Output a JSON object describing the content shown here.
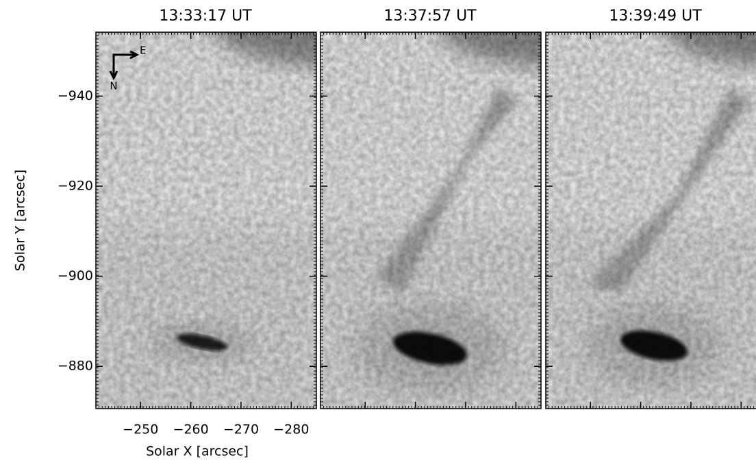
{
  "chart_data": {
    "type": "image-panels",
    "panels": [
      {
        "title": "13:33:17 UT"
      },
      {
        "title": "13:37:57 UT"
      },
      {
        "title": "13:39:49 UT"
      }
    ],
    "x_label": "Solar X [arcsec]",
    "y_label": "Solar Y [arcsec]",
    "xlim": [
      -241.1,
      -285.0
    ],
    "xticks": [
      {
        "value": -250,
        "label": "−250"
      },
      {
        "value": -260,
        "label": "−260"
      },
      {
        "value": -270,
        "label": "−270"
      },
      {
        "value": -280,
        "label": "−280"
      }
    ],
    "ylim": [
      -870.6,
      -954.2
    ],
    "yticks": [
      {
        "value": -940,
        "label": "−940"
      },
      {
        "value": -920,
        "label": "−920"
      },
      {
        "value": -900,
        "label": "−900"
      },
      {
        "value": -880,
        "label": "−880"
      }
    ],
    "compass": {
      "east": "E",
      "north": "N"
    }
  }
}
